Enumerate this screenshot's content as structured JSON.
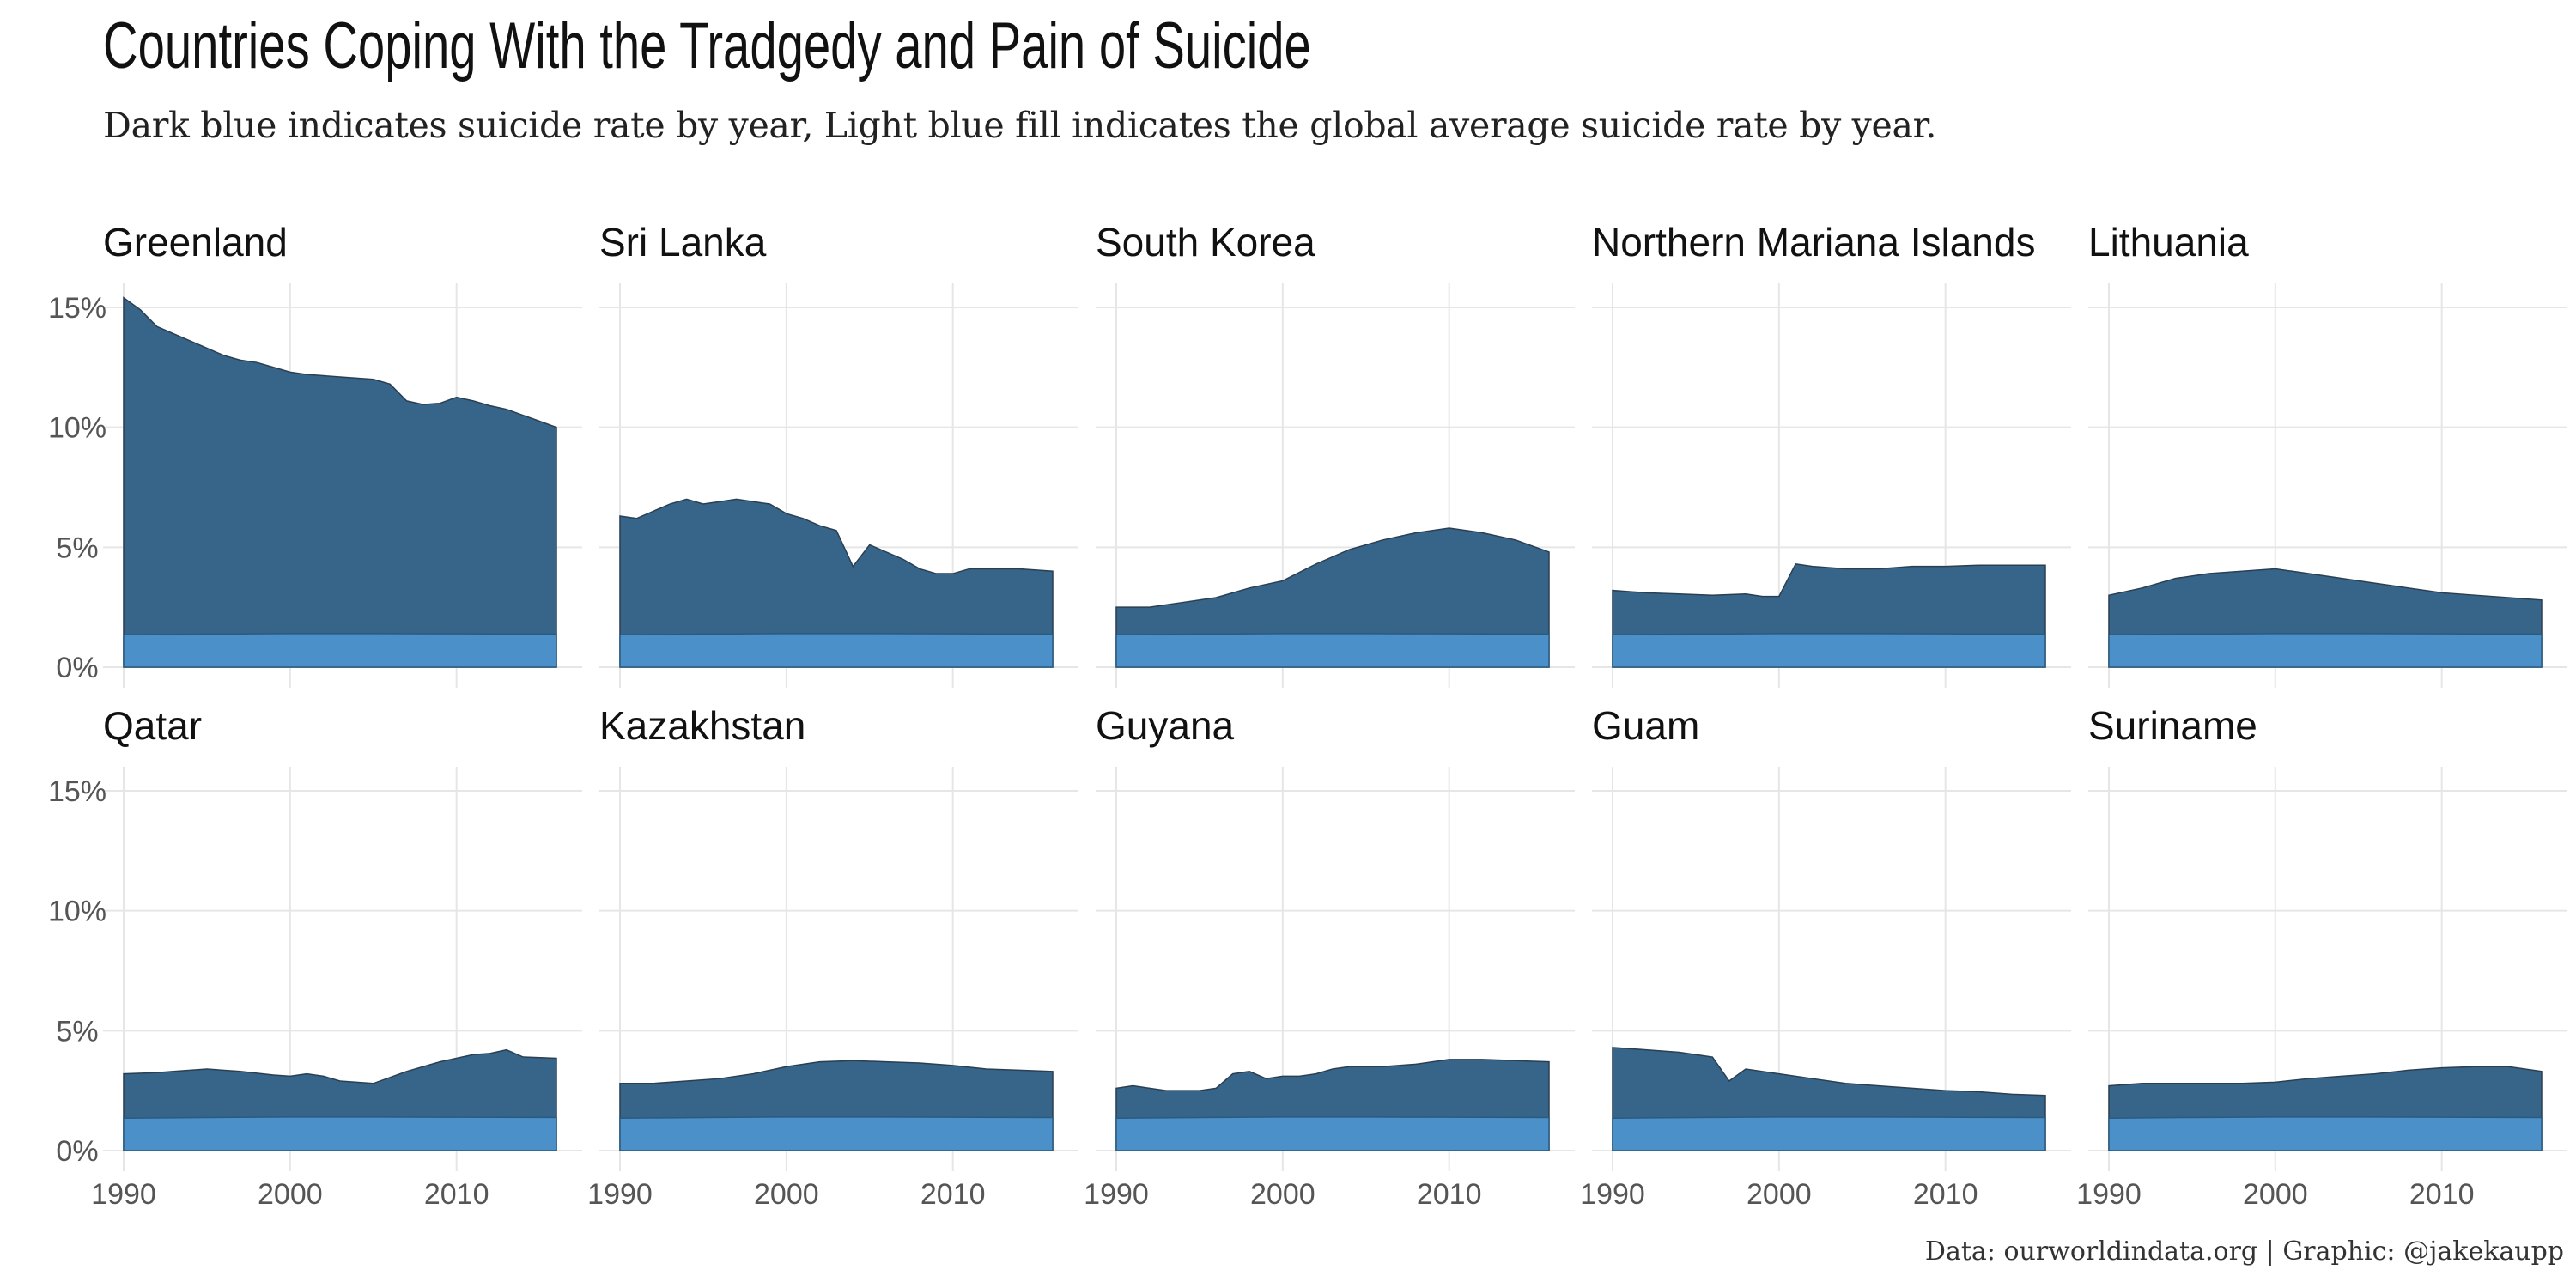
{
  "title": "Countries Coping With the Tradgedy and Pain of Suicide",
  "subtitle": "Dark blue indicates suicide rate by year, Light blue fill indicates the global average suicide rate by year.",
  "caption": "Data: ourworldindata.org | Graphic: @jakekaupp",
  "colors": {
    "country": "#376589",
    "global": "#4b90c9",
    "grid": "#e6e6e6"
  },
  "chart_data": {
    "type": "area",
    "layout": "small-multiples 2 rows x 5 columns",
    "x_ticks": [
      1990,
      2000,
      2010
    ],
    "y_ticks": [
      "0%",
      "5%",
      "10%",
      "15%"
    ],
    "y_tick_values": [
      0,
      5,
      10,
      15
    ],
    "xlim": [
      1990,
      2016
    ],
    "ylim": [
      0,
      16
    ],
    "global_average": {
      "x": [
        1990,
        1995,
        2000,
        2005,
        2010,
        2016
      ],
      "y": [
        1.35,
        1.38,
        1.4,
        1.4,
        1.39,
        1.38
      ]
    },
    "panels": [
      {
        "name": "Greenland",
        "x": [
          1990,
          1991,
          1992,
          1993,
          1994,
          1995,
          1996,
          1997,
          1998,
          1999,
          2000,
          2001,
          2002,
          2003,
          2004,
          2005,
          2006,
          2007,
          2008,
          2009,
          2010,
          2011,
          2012,
          2013,
          2014,
          2015,
          2016
        ],
        "y": [
          15.4,
          14.9,
          14.2,
          13.9,
          13.6,
          13.3,
          13.0,
          12.8,
          12.7,
          12.5,
          12.3,
          12.2,
          12.15,
          12.1,
          12.05,
          12.0,
          11.8,
          11.1,
          10.95,
          11.0,
          11.25,
          11.1,
          10.9,
          10.75,
          10.5,
          10.25,
          10.0
        ]
      },
      {
        "name": "Sri Lanka",
        "x": [
          1990,
          1991,
          1992,
          1993,
          1994,
          1995,
          1996,
          1997,
          1998,
          1999,
          2000,
          2001,
          2002,
          2003,
          2004,
          2005,
          2006,
          2007,
          2008,
          2009,
          2010,
          2011,
          2012,
          2013,
          2014,
          2015,
          2016
        ],
        "y": [
          6.3,
          6.2,
          6.5,
          6.8,
          7.0,
          6.8,
          6.9,
          7.0,
          6.9,
          6.8,
          6.4,
          6.2,
          5.9,
          5.7,
          4.2,
          5.1,
          4.8,
          4.5,
          4.1,
          3.9,
          3.9,
          4.1,
          4.1,
          4.1,
          4.1,
          4.05,
          4.0
        ]
      },
      {
        "name": "South Korea",
        "x": [
          1990,
          1992,
          1994,
          1996,
          1998,
          2000,
          2002,
          2004,
          2006,
          2008,
          2010,
          2012,
          2014,
          2016
        ],
        "y": [
          2.5,
          2.5,
          2.7,
          2.9,
          3.3,
          3.6,
          4.3,
          4.9,
          5.3,
          5.6,
          5.8,
          5.6,
          5.3,
          4.8
        ]
      },
      {
        "name": "Northern Mariana Islands",
        "x": [
          1990,
          1992,
          1994,
          1996,
          1998,
          1999,
          2000,
          2001,
          2002,
          2004,
          2006,
          2008,
          2010,
          2012,
          2014,
          2016
        ],
        "y": [
          3.2,
          3.1,
          3.05,
          3.0,
          3.05,
          2.95,
          2.95,
          4.3,
          4.2,
          4.1,
          4.1,
          4.2,
          4.2,
          4.25,
          4.25,
          4.25
        ]
      },
      {
        "name": "Lithuania",
        "x": [
          1990,
          1992,
          1994,
          1996,
          1998,
          2000,
          2002,
          2004,
          2006,
          2008,
          2010,
          2012,
          2014,
          2016
        ],
        "y": [
          3.0,
          3.3,
          3.7,
          3.9,
          4.0,
          4.1,
          3.9,
          3.7,
          3.5,
          3.3,
          3.1,
          3.0,
          2.9,
          2.8
        ]
      },
      {
        "name": "Qatar",
        "x": [
          1990,
          1992,
          1993,
          1995,
          1997,
          1999,
          2000,
          2001,
          2002,
          2003,
          2005,
          2007,
          2009,
          2011,
          2012,
          2013,
          2014,
          2016
        ],
        "y": [
          3.2,
          3.25,
          3.3,
          3.4,
          3.3,
          3.15,
          3.1,
          3.2,
          3.1,
          2.9,
          2.8,
          3.3,
          3.7,
          4.0,
          4.05,
          4.2,
          3.9,
          3.85
        ]
      },
      {
        "name": "Kazakhstan",
        "x": [
          1990,
          1992,
          1994,
          1996,
          1998,
          2000,
          2002,
          2004,
          2006,
          2008,
          2010,
          2012,
          2014,
          2016
        ],
        "y": [
          2.8,
          2.8,
          2.9,
          3.0,
          3.2,
          3.5,
          3.7,
          3.75,
          3.7,
          3.65,
          3.55,
          3.4,
          3.35,
          3.3
        ]
      },
      {
        "name": "Guyana",
        "x": [
          1990,
          1991,
          1992,
          1993,
          1994,
          1995,
          1996,
          1997,
          1998,
          1999,
          2000,
          2001,
          2002,
          2003,
          2004,
          2006,
          2008,
          2010,
          2012,
          2014,
          2016
        ],
        "y": [
          2.6,
          2.7,
          2.6,
          2.5,
          2.5,
          2.5,
          2.6,
          3.2,
          3.3,
          3.0,
          3.1,
          3.1,
          3.2,
          3.4,
          3.5,
          3.5,
          3.6,
          3.8,
          3.8,
          3.75,
          3.7
        ]
      },
      {
        "name": "Guam",
        "x": [
          1990,
          1992,
          1994,
          1995,
          1996,
          1997,
          1998,
          1999,
          2000,
          2002,
          2004,
          2006,
          2008,
          2010,
          2012,
          2014,
          2016
        ],
        "y": [
          4.3,
          4.2,
          4.1,
          4.0,
          3.9,
          2.9,
          3.4,
          3.3,
          3.2,
          3.0,
          2.8,
          2.7,
          2.6,
          2.5,
          2.45,
          2.35,
          2.3
        ]
      },
      {
        "name": "Suriname",
        "x": [
          1990,
          1992,
          1994,
          1996,
          1998,
          2000,
          2002,
          2004,
          2006,
          2008,
          2010,
          2012,
          2014,
          2016
        ],
        "y": [
          2.7,
          2.8,
          2.8,
          2.8,
          2.8,
          2.85,
          3.0,
          3.1,
          3.2,
          3.35,
          3.45,
          3.5,
          3.5,
          3.3
        ]
      }
    ]
  }
}
